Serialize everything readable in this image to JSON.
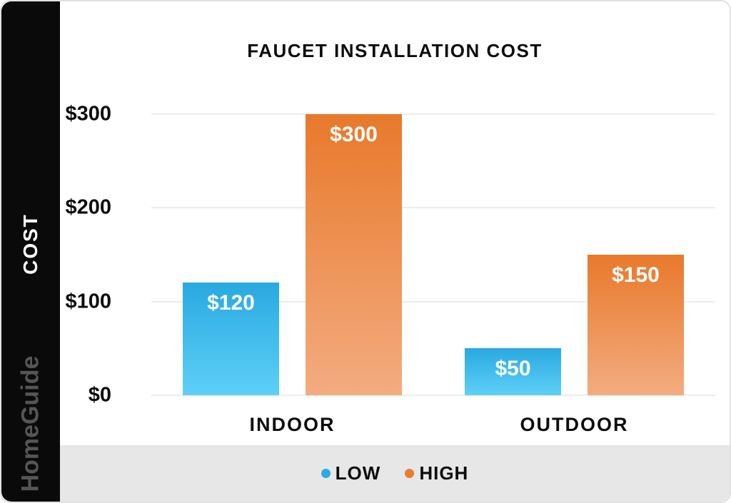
{
  "page": {
    "brand": "HomeGuide"
  },
  "chart_data": {
    "type": "bar",
    "title": "FAUCET INSTALLATION COST",
    "ylabel": "COST",
    "xlabel": "",
    "categories": [
      "INDOOR",
      "OUTDOOR"
    ],
    "series": [
      {
        "name": "LOW",
        "values": [
          120,
          50
        ],
        "labels": [
          "$120",
          "$50"
        ],
        "color_top": "#29a9e1",
        "color_bottom": "#5ed0f7",
        "legend_dot_color": "#29abe2"
      },
      {
        "name": "HIGH",
        "values": [
          300,
          150
        ],
        "labels": [
          "$300",
          "$150"
        ],
        "color_top": "#e8792b",
        "color_bottom": "#f3ac80",
        "legend_dot_color": "#e87e2e"
      }
    ],
    "ylim": [
      0,
      300
    ],
    "yticks": [
      {
        "value": 300,
        "label": "$300"
      },
      {
        "value": 200,
        "label": "$200"
      },
      {
        "value": 100,
        "label": "$100"
      },
      {
        "value": 0,
        "label": "$0"
      }
    ],
    "grid": true,
    "legend_position": "bottom",
    "colors": {
      "grid": "#ececec",
      "text": "#0d0d0d",
      "bar_value_text": "#ffffff",
      "legend_strip_bg": "#e7e7e7",
      "sidebar_bg": "#0a0a0a",
      "brand_text": "#555555"
    }
  }
}
